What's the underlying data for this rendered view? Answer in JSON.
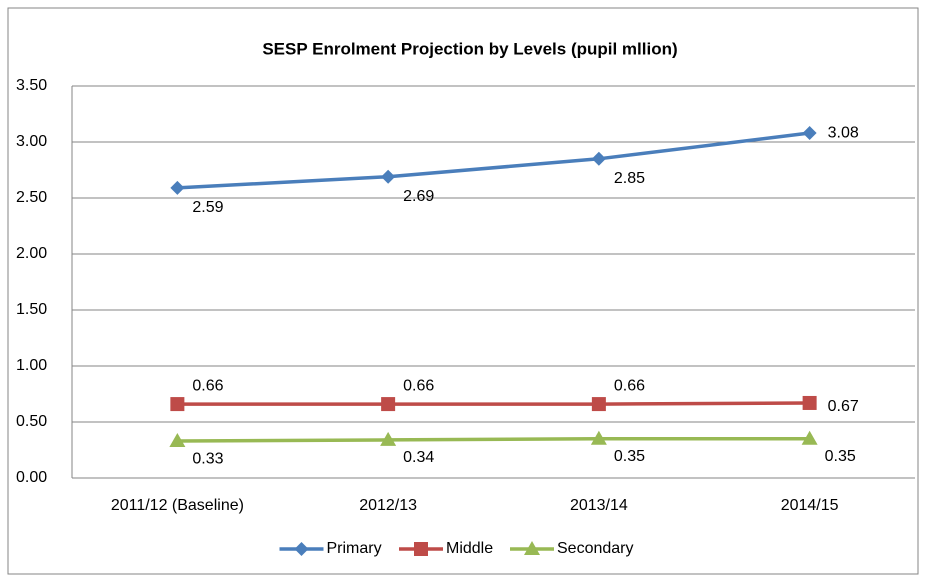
{
  "chart_data": {
    "type": "line",
    "title": "SESP Enrolment Projection by Levels (pupil mllion)",
    "categories": [
      "2011/12 (Baseline)",
      "2012/13",
      "2013/14",
      "2014/15"
    ],
    "series": [
      {
        "name": "Primary",
        "color": "#4a7ebb",
        "marker": "diamond",
        "values": [
          2.59,
          2.69,
          2.85,
          3.08
        ]
      },
      {
        "name": "Middle",
        "color": "#be4b48",
        "marker": "square",
        "values": [
          0.66,
          0.66,
          0.66,
          0.67
        ]
      },
      {
        "name": "Secondary",
        "color": "#98b954",
        "marker": "triangle",
        "values": [
          0.33,
          0.34,
          0.35,
          0.35
        ]
      }
    ],
    "ylim": [
      0,
      3.5
    ],
    "yticks": [
      {
        "value": 0,
        "label": "0.00"
      },
      {
        "value": 0.5,
        "label": "0.50"
      },
      {
        "value": 1,
        "label": "1.00"
      },
      {
        "value": 1.5,
        "label": "1.50"
      },
      {
        "value": 2,
        "label": "2.00"
      },
      {
        "value": 2.5,
        "label": "2.50"
      },
      {
        "value": 3,
        "label": "3.00"
      },
      {
        "value": 3.5,
        "label": "3.50"
      }
    ],
    "grid": true,
    "legend": "bottom"
  }
}
